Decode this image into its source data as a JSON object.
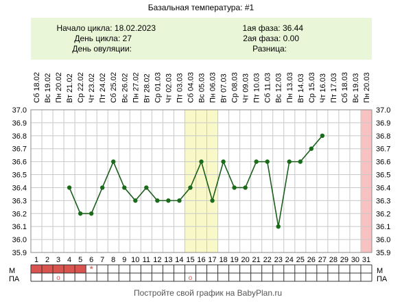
{
  "title": "Базальная температура: #1",
  "info": {
    "cycle_start_label": "Начало цикла: 18.02.2023",
    "cycle_day_label": "День цикла: 27",
    "ovulation_day_label": "День овуляции:",
    "phase1_label": "1ая фаза: 36.44",
    "phase2_label": "2ая фаза: 0.00",
    "difference_label": "Разница:"
  },
  "footer": "Постройте свой график на BabyPlan.ru",
  "row_labels": {
    "m": "М",
    "pa": "ПА"
  },
  "chart_data": {
    "type": "line",
    "title": "Базальная температура: #1",
    "xlabel": "",
    "ylabel": "",
    "x": [
      1,
      2,
      3,
      4,
      5,
      6,
      7,
      8,
      9,
      10,
      11,
      12,
      13,
      14,
      15,
      16,
      17,
      18,
      19,
      20,
      21,
      22,
      23,
      24,
      25,
      26,
      27,
      28,
      29,
      30,
      31
    ],
    "dates": [
      "Сб 18.02",
      "Вс 19.02",
      "Пн 20.02",
      "Вт 21.02",
      "Ср 22.02",
      "Чт 23.02",
      "Пт 24.02",
      "Сб 25.02",
      "Вс 26.02",
      "Пн 27.02",
      "Вт 28.02",
      "Ср 01.03",
      "Чт 02.03",
      "Пт 03.03",
      "Сб 04.03",
      "Вс 05.03",
      "Пн 06.03",
      "Вт 07.03",
      "Ср 08.03",
      "Чт 09.03",
      "Пт 10.03",
      "Сб 11.03",
      "Вс 12.03",
      "Пн 13.03",
      "Вт 14.03",
      "Ср 15.03",
      "Чт 16.03",
      "Пт 17.03",
      "Сб 18.03",
      "Вс 19.03",
      "Пн 20.03"
    ],
    "series": [
      {
        "points": [
          [
            4,
            36.4
          ],
          [
            5,
            36.2
          ],
          [
            6,
            36.2
          ],
          [
            7,
            36.4
          ],
          [
            8,
            36.6
          ],
          [
            9,
            36.4
          ],
          [
            10,
            36.3
          ],
          [
            11,
            36.4
          ],
          [
            12,
            36.3
          ],
          [
            13,
            36.3
          ],
          [
            14,
            36.3
          ],
          [
            15,
            36.4
          ],
          [
            16,
            36.6
          ],
          [
            17,
            36.3
          ],
          [
            18,
            36.6
          ],
          [
            19,
            36.4
          ],
          [
            20,
            36.4
          ],
          [
            21,
            36.6
          ],
          [
            22,
            36.6
          ],
          [
            23,
            36.1
          ],
          [
            24,
            36.6
          ],
          [
            25,
            36.6
          ],
          [
            26,
            36.7
          ],
          [
            27,
            36.8
          ]
        ]
      }
    ],
    "ylim": [
      35.9,
      37.0
    ],
    "yticks": [
      "37.0",
      "36.9",
      "36.8",
      "36.7",
      "36.6",
      "36.5",
      "36.4",
      "36.3",
      "36.2",
      "36.1",
      "36.0",
      "35.9"
    ],
    "highlight_days": [
      15,
      17
    ],
    "future_day": 31,
    "menstruation_days": [
      1,
      5
    ],
    "ovulation_marker_day": 6,
    "ovulation_marker_symbol": "*",
    "intercourse_days": [
      3,
      15
    ],
    "intercourse_symbol": "o",
    "colors": {
      "line": "#1c5e1c",
      "point": "#1a6b1a",
      "info_bg": "#eaf6d8",
      "highlight": "#f8f8c8",
      "future": "#f9c2c2",
      "menstruation": "#d9534f",
      "grid": "#c8c8c8",
      "marker": "#e05050"
    },
    "grid": true
  }
}
